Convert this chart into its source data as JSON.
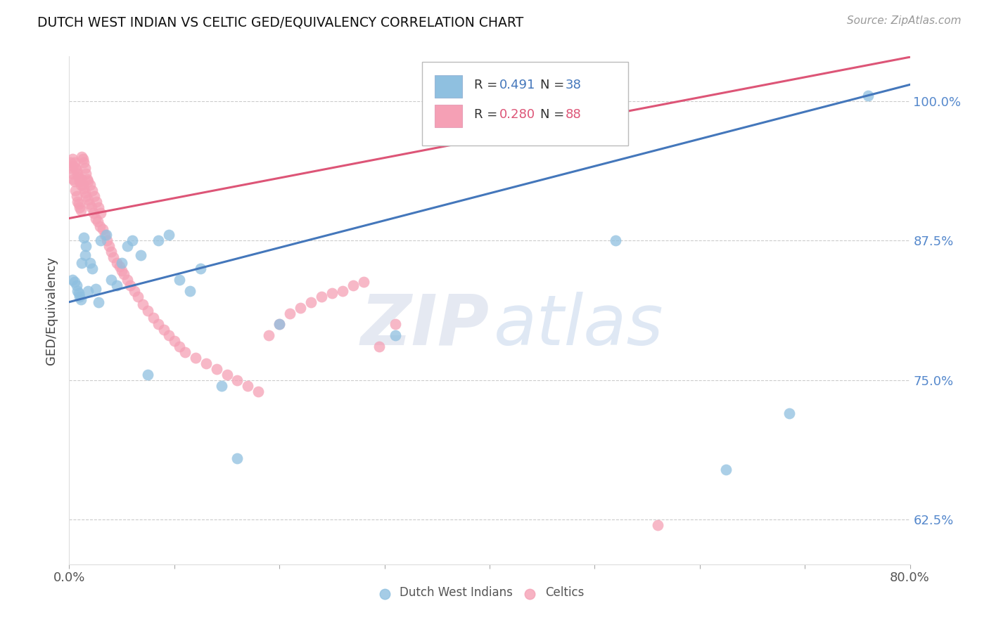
{
  "title": "DUTCH WEST INDIAN VS CELTIC GED/EQUIVALENCY CORRELATION CHART",
  "source": "Source: ZipAtlas.com",
  "ylabel": "GED/Equivalency",
  "ytick_labels": [
    "62.5%",
    "75.0%",
    "87.5%",
    "100.0%"
  ],
  "ytick_values": [
    0.625,
    0.75,
    0.875,
    1.0
  ],
  "xmin": 0.0,
  "xmax": 0.8,
  "ymin": 0.585,
  "ymax": 1.04,
  "blue_R": 0.491,
  "blue_N": 38,
  "pink_R": 0.28,
  "pink_N": 88,
  "blue_color": "#8fc0e0",
  "pink_color": "#f5a0b5",
  "blue_line_color": "#4477bb",
  "pink_line_color": "#dd5577",
  "watermark": "ZIPatlas",
  "legend_label_blue": "Dutch West Indians",
  "legend_label_pink": "Celtics",
  "blue_line_x0": 0.0,
  "blue_line_y0": 0.82,
  "blue_line_x1": 0.76,
  "blue_line_y1": 1.005,
  "pink_line_x0": 0.0,
  "pink_line_y0": 0.895,
  "pink_line_x1": 0.36,
  "pink_line_y1": 0.96,
  "blue_points_x": [
    0.003,
    0.005,
    0.007,
    0.008,
    0.009,
    0.01,
    0.011,
    0.012,
    0.014,
    0.015,
    0.016,
    0.018,
    0.02,
    0.022,
    0.025,
    0.028,
    0.03,
    0.035,
    0.04,
    0.045,
    0.05,
    0.055,
    0.06,
    0.068,
    0.075,
    0.085,
    0.095,
    0.105,
    0.115,
    0.125,
    0.145,
    0.16,
    0.2,
    0.31,
    0.52,
    0.625,
    0.685,
    0.76
  ],
  "blue_points_y": [
    0.84,
    0.838,
    0.835,
    0.83,
    0.828,
    0.825,
    0.822,
    0.855,
    0.878,
    0.862,
    0.87,
    0.83,
    0.855,
    0.85,
    0.832,
    0.82,
    0.875,
    0.88,
    0.84,
    0.835,
    0.855,
    0.87,
    0.875,
    0.862,
    0.755,
    0.875,
    0.88,
    0.84,
    0.83,
    0.85,
    0.745,
    0.68,
    0.8,
    0.79,
    0.875,
    0.67,
    0.72,
    1.005
  ],
  "pink_points_x": [
    0.001,
    0.002,
    0.003,
    0.003,
    0.004,
    0.004,
    0.005,
    0.005,
    0.006,
    0.006,
    0.007,
    0.007,
    0.008,
    0.008,
    0.009,
    0.009,
    0.01,
    0.01,
    0.011,
    0.011,
    0.012,
    0.012,
    0.013,
    0.013,
    0.014,
    0.014,
    0.015,
    0.015,
    0.016,
    0.016,
    0.017,
    0.018,
    0.018,
    0.019,
    0.02,
    0.021,
    0.022,
    0.023,
    0.024,
    0.025,
    0.026,
    0.027,
    0.028,
    0.029,
    0.03,
    0.032,
    0.034,
    0.036,
    0.038,
    0.04,
    0.042,
    0.045,
    0.048,
    0.05,
    0.052,
    0.055,
    0.058,
    0.062,
    0.065,
    0.07,
    0.075,
    0.08,
    0.085,
    0.09,
    0.095,
    0.1,
    0.105,
    0.11,
    0.12,
    0.13,
    0.14,
    0.15,
    0.16,
    0.17,
    0.18,
    0.19,
    0.2,
    0.21,
    0.22,
    0.23,
    0.24,
    0.25,
    0.26,
    0.27,
    0.28,
    0.295,
    0.31,
    0.56
  ],
  "pink_points_y": [
    0.945,
    0.94,
    0.948,
    0.935,
    0.942,
    0.93,
    0.945,
    0.928,
    0.94,
    0.92,
    0.938,
    0.915,
    0.935,
    0.91,
    0.932,
    0.908,
    0.928,
    0.905,
    0.925,
    0.902,
    0.95,
    0.93,
    0.948,
    0.925,
    0.945,
    0.922,
    0.94,
    0.918,
    0.935,
    0.915,
    0.93,
    0.912,
    0.928,
    0.908,
    0.925,
    0.905,
    0.92,
    0.9,
    0.915,
    0.895,
    0.91,
    0.892,
    0.905,
    0.888,
    0.9,
    0.885,
    0.88,
    0.875,
    0.87,
    0.865,
    0.86,
    0.855,
    0.852,
    0.848,
    0.845,
    0.84,
    0.835,
    0.83,
    0.825,
    0.818,
    0.812,
    0.806,
    0.8,
    0.795,
    0.79,
    0.785,
    0.78,
    0.775,
    0.77,
    0.765,
    0.76,
    0.755,
    0.75,
    0.745,
    0.74,
    0.79,
    0.8,
    0.81,
    0.815,
    0.82,
    0.825,
    0.828,
    0.83,
    0.835,
    0.838,
    0.78,
    0.8,
    0.62
  ]
}
